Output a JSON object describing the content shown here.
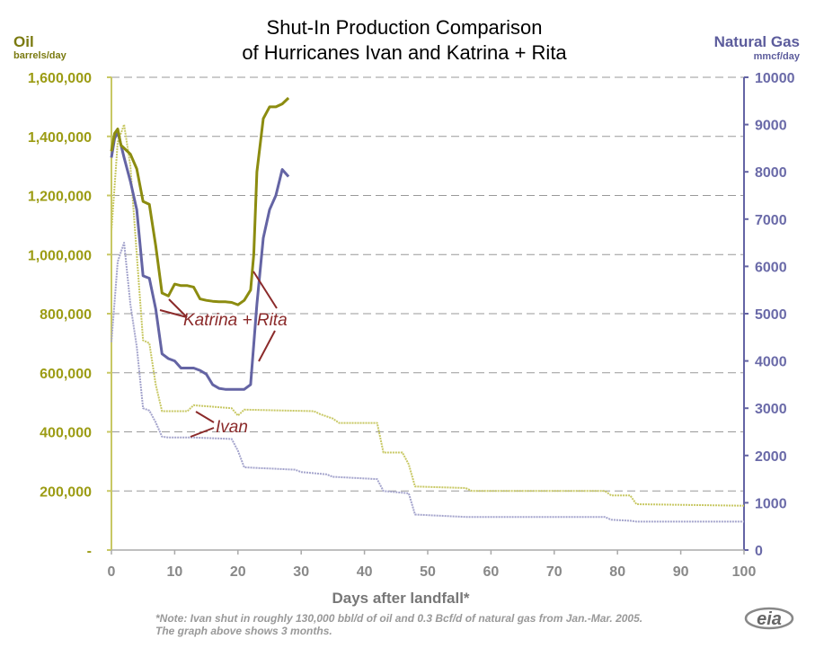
{
  "chart_data": {
    "type": "line",
    "title_line1": "Shut-In Production Comparison",
    "title_line2": "of Hurricanes Ivan and Katrina + Rita",
    "xlabel": "Days after landfall*",
    "y_left_label": "Oil",
    "y_left_unit": "barrels/day",
    "y_right_label": "Natural Gas",
    "y_right_unit": "mmcf/day",
    "xlim": [
      0,
      100
    ],
    "ylim_left": [
      0,
      1600000
    ],
    "ylim_right": [
      0,
      10000
    ],
    "x_ticks": [
      "0",
      "10",
      "20",
      "30",
      "40",
      "50",
      "60",
      "70",
      "80",
      "90",
      "100"
    ],
    "y_left_ticks": [
      "-",
      "200,000",
      "400,000",
      "600,000",
      "800,000",
      "1,000,000",
      "1,200,000",
      "1,400,000",
      "1,600,000"
    ],
    "y_right_ticks": [
      "0",
      "1000",
      "2000",
      "3000",
      "4000",
      "5000",
      "6000",
      "7000",
      "8000",
      "9000",
      "10000"
    ],
    "grid": "horizontal dashed",
    "note_line1": "*Note: Ivan shut in roughly 130,000 bbl/d of oil and 0.3 Bcf/d of natural gas from Jan.-Mar. 2005.",
    "note_line2": "The graph above shows 3 months.",
    "logo_text": "eia",
    "annotations": [
      {
        "text": "Katrina + Rita"
      },
      {
        "text": "Ivan"
      }
    ],
    "colors": {
      "katrina_oil": "#8c8c10",
      "katrina_gas": "#6464a4",
      "ivan_oil": "#c8c864",
      "ivan_gas": "#a4a4cc",
      "annotation": "#8b2a2a",
      "grid": "#999999"
    },
    "series": [
      {
        "key": "katrina_oil",
        "axis": "left",
        "weight": "heavy",
        "x": [
          0,
          0.5,
          1,
          1.5,
          2,
          3,
          4,
          5,
          6,
          7,
          8,
          9,
          10,
          11,
          12,
          13,
          14,
          15,
          16,
          17,
          18,
          19,
          20,
          21,
          22,
          22.5,
          23,
          24,
          25,
          26,
          27,
          28
        ],
        "y": [
          1350000,
          1410000,
          1425000,
          1370000,
          1360000,
          1340000,
          1290000,
          1180000,
          1170000,
          1030000,
          870000,
          860000,
          900000,
          895000,
          895000,
          890000,
          850000,
          845000,
          842000,
          840000,
          840000,
          838000,
          830000,
          845000,
          880000,
          1000000,
          1280000,
          1460000,
          1500000,
          1500000,
          1510000,
          1530000
        ]
      },
      {
        "key": "katrina_gas",
        "axis": "right",
        "weight": "heavy",
        "x": [
          0,
          0.5,
          1,
          2,
          3,
          4,
          5,
          6,
          7,
          8,
          9,
          10,
          11,
          12,
          13,
          14,
          15,
          16,
          17,
          18,
          19,
          20,
          21,
          22,
          23,
          24,
          25,
          26,
          27,
          28
        ],
        "y": [
          8300,
          8700,
          8850,
          8300,
          7800,
          7200,
          5800,
          5750,
          5100,
          4150,
          4050,
          4000,
          3850,
          3850,
          3850,
          3800,
          3720,
          3500,
          3420,
          3400,
          3400,
          3400,
          3400,
          3500,
          5200,
          6600,
          7200,
          7500,
          8050,
          7900
        ]
      },
      {
        "key": "ivan_oil",
        "axis": "left",
        "weight": "light",
        "x": [
          0,
          1,
          2,
          3,
          4,
          5,
          6,
          7,
          8,
          9,
          12,
          13,
          19,
          20,
          21,
          32,
          33,
          35,
          36,
          42,
          43,
          46,
          47,
          48,
          56,
          57,
          78,
          79,
          82,
          83,
          100
        ],
        "y": [
          1080000,
          1380000,
          1440000,
          1300000,
          1000000,
          710000,
          700000,
          560000,
          470000,
          470000,
          470000,
          490000,
          480000,
          455000,
          475000,
          470000,
          460000,
          445000,
          430000,
          430000,
          330000,
          330000,
          290000,
          215000,
          210000,
          200000,
          200000,
          185000,
          185000,
          155000,
          150000
        ]
      },
      {
        "key": "ivan_gas",
        "axis": "right",
        "weight": "light",
        "x": [
          0,
          1,
          2,
          3,
          4,
          5,
          6,
          7,
          8,
          9,
          12,
          13,
          19,
          20,
          21,
          29,
          30,
          34,
          35,
          42,
          43,
          47,
          48,
          56,
          57,
          78,
          79,
          82,
          83,
          100
        ],
        "y": [
          4400,
          6100,
          6500,
          5200,
          4300,
          3000,
          2950,
          2700,
          2400,
          2380,
          2380,
          2380,
          2350,
          2100,
          1750,
          1700,
          1650,
          1600,
          1550,
          1500,
          1250,
          1200,
          750,
          700,
          700,
          700,
          640,
          620,
          600,
          600
        ]
      }
    ]
  }
}
